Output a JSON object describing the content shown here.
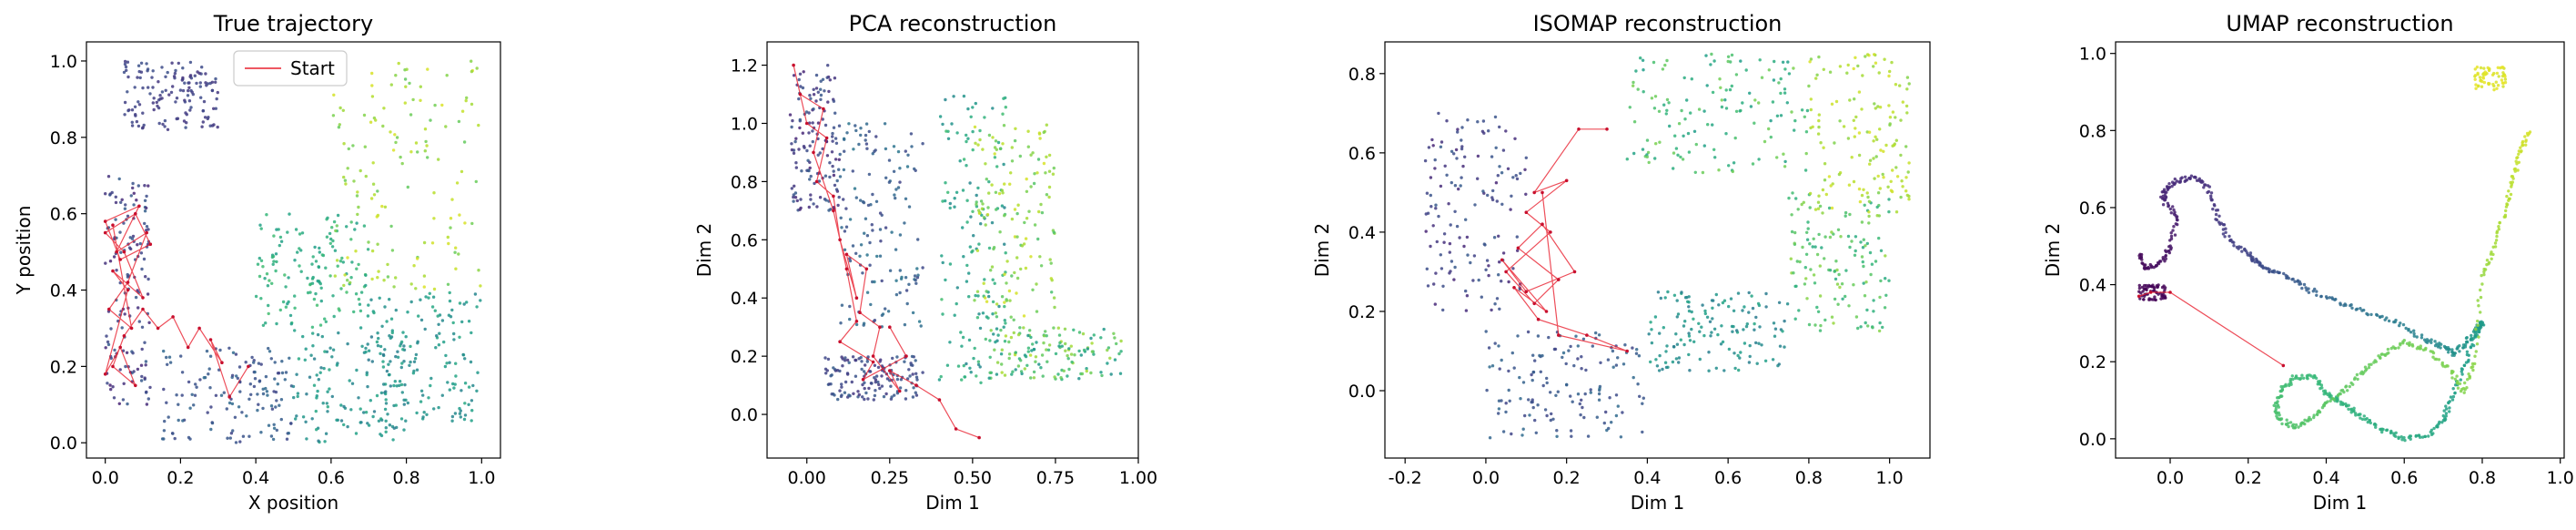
{
  "chart_data": [
    {
      "type": "scatter",
      "title": "True trajectory",
      "xlabel": "X position",
      "ylabel": "Y position",
      "xlim": [
        -0.05,
        1.05
      ],
      "ylim": [
        -0.04,
        1.05
      ],
      "xticks": [
        "0.0",
        "0.2",
        "0.4",
        "0.6",
        "0.8",
        "1.0"
      ],
      "xtick_values": [
        0.0,
        0.2,
        0.4,
        0.6,
        0.8,
        1.0
      ],
      "yticks": [
        "0.0",
        "0.2",
        "0.4",
        "0.6",
        "0.8",
        "1.0"
      ],
      "ytick_values": [
        0.0,
        0.2,
        0.4,
        0.6,
        0.8,
        1.0
      ],
      "legend": {
        "entries": [
          "Start"
        ],
        "placement": "top-center"
      },
      "points_colormap": "viridis",
      "point_clusters": [
        {
          "x": [
            0.0,
            0.12
          ],
          "y": [
            0.1,
            0.7
          ],
          "c": [
            0.1,
            0.3
          ]
        },
        {
          "x": [
            0.05,
            0.3
          ],
          "y": [
            0.82,
            1.0
          ],
          "c": [
            0.15,
            0.25
          ]
        },
        {
          "x": [
            0.15,
            0.5
          ],
          "y": [
            0.0,
            0.25
          ],
          "c": [
            0.2,
            0.35
          ]
        },
        {
          "x": [
            0.5,
            0.8
          ],
          "y": [
            0.0,
            0.3
          ],
          "c": [
            0.4,
            0.6
          ]
        },
        {
          "x": [
            0.7,
            1.0
          ],
          "y": [
            0.05,
            0.4
          ],
          "c": [
            0.45,
            0.6
          ]
        },
        {
          "x": [
            0.4,
            0.7
          ],
          "y": [
            0.3,
            0.6
          ],
          "c": [
            0.55,
            0.7
          ]
        },
        {
          "x": [
            0.6,
            1.0
          ],
          "y": [
            0.4,
            1.0
          ],
          "c": [
            0.75,
            0.95
          ]
        }
      ],
      "start_path": {
        "x": [
          0.38,
          0.33,
          0.28,
          0.31,
          0.25,
          0.22,
          0.18,
          0.14,
          0.1,
          0.05,
          0.02,
          0.08,
          0.04,
          0.0,
          0.06,
          0.02,
          0.1,
          0.05,
          0.0,
          0.08,
          0.12,
          0.04,
          0.0,
          0.09,
          0.03,
          0.11,
          0.06,
          0.01,
          0.07,
          0.02
        ],
        "y": [
          0.2,
          0.12,
          0.27,
          0.21,
          0.3,
          0.25,
          0.33,
          0.3,
          0.35,
          0.28,
          0.2,
          0.15,
          0.25,
          0.18,
          0.4,
          0.45,
          0.38,
          0.5,
          0.55,
          0.6,
          0.52,
          0.48,
          0.58,
          0.62,
          0.5,
          0.55,
          0.42,
          0.35,
          0.3,
          0.57
        ]
      }
    },
    {
      "type": "scatter",
      "title": "PCA reconstruction",
      "xlabel": "Dim 1",
      "ylabel": "Dim 2",
      "xlim": [
        -0.12,
        1.0
      ],
      "ylim": [
        -0.15,
        1.28
      ],
      "xticks": [
        "0.00",
        "0.25",
        "0.50",
        "0.75",
        "1.00"
      ],
      "xtick_values": [
        0.0,
        0.25,
        0.5,
        0.75,
        1.0
      ],
      "yticks": [
        "0.0",
        "0.2",
        "0.4",
        "0.6",
        "0.8",
        "1.0",
        "1.2"
      ],
      "ytick_values": [
        0.0,
        0.2,
        0.4,
        0.6,
        0.8,
        1.0,
        1.2
      ],
      "points_colormap": "viridis",
      "point_clusters": [
        {
          "x": [
            -0.05,
            0.1
          ],
          "y": [
            0.7,
            1.2
          ],
          "c": [
            0.1,
            0.3
          ]
        },
        {
          "x": [
            0.05,
            0.35
          ],
          "y": [
            0.05,
            0.2
          ],
          "c": [
            0.15,
            0.3
          ]
        },
        {
          "x": [
            0.1,
            0.35
          ],
          "y": [
            0.3,
            1.0
          ],
          "c": [
            0.2,
            0.4
          ]
        },
        {
          "x": [
            0.4,
            0.6
          ],
          "y": [
            0.1,
            1.1
          ],
          "c": [
            0.45,
            0.7
          ]
        },
        {
          "x": [
            0.55,
            0.95
          ],
          "y": [
            0.12,
            0.3
          ],
          "c": [
            0.5,
            0.9
          ]
        },
        {
          "x": [
            0.5,
            0.75
          ],
          "y": [
            0.3,
            1.0
          ],
          "c": [
            0.7,
            0.95
          ]
        }
      ],
      "start_path": {
        "x": [
          0.52,
          0.45,
          0.4,
          0.33,
          0.25,
          0.28,
          0.2,
          0.22,
          0.16,
          0.18,
          0.12,
          0.15,
          0.1,
          0.08,
          0.03,
          0.06,
          0.0,
          -0.04,
          -0.02,
          0.05,
          0.02,
          0.08,
          0.12,
          0.15,
          0.1,
          0.2,
          0.17,
          0.3,
          0.25
        ],
        "y": [
          -0.08,
          -0.05,
          0.05,
          0.1,
          0.15,
          0.08,
          0.2,
          0.3,
          0.35,
          0.5,
          0.55,
          0.4,
          0.6,
          0.75,
          0.8,
          0.95,
          1.0,
          1.2,
          1.1,
          1.05,
          0.9,
          0.7,
          0.5,
          0.32,
          0.25,
          0.18,
          0.12,
          0.2,
          0.3
        ]
      }
    },
    {
      "type": "scatter",
      "title": "ISOMAP reconstruction",
      "xlabel": "Dim 1",
      "ylabel": "Dim 2",
      "xlim": [
        -0.25,
        1.1
      ],
      "ylim": [
        -0.17,
        0.88
      ],
      "xticks": [
        "-0.2",
        "0.0",
        "0.2",
        "0.4",
        "0.6",
        "0.8",
        "1.0"
      ],
      "xtick_values": [
        -0.2,
        0.0,
        0.2,
        0.4,
        0.6,
        0.8,
        1.0
      ],
      "yticks": [
        "0.0",
        "0.2",
        "0.4",
        "0.6",
        "0.8"
      ],
      "ytick_values": [
        0.0,
        0.2,
        0.4,
        0.6,
        0.8
      ],
      "points_colormap": "viridis",
      "point_clusters": [
        {
          "x": [
            -0.15,
            0.1
          ],
          "y": [
            0.2,
            0.7
          ],
          "c": [
            0.1,
            0.3
          ]
        },
        {
          "x": [
            0.0,
            0.4
          ],
          "y": [
            -0.12,
            0.15
          ],
          "c": [
            0.2,
            0.35
          ]
        },
        {
          "x": [
            0.4,
            0.75
          ],
          "y": [
            0.05,
            0.25
          ],
          "c": [
            0.4,
            0.6
          ]
        },
        {
          "x": [
            0.75,
            1.0
          ],
          "y": [
            0.15,
            0.5
          ],
          "c": [
            0.6,
            0.85
          ]
        },
        {
          "x": [
            0.8,
            1.05
          ],
          "y": [
            0.45,
            0.85
          ],
          "c": [
            0.8,
            0.95
          ]
        },
        {
          "x": [
            0.35,
            0.8
          ],
          "y": [
            0.55,
            0.85
          ],
          "c": [
            0.55,
            0.8
          ]
        }
      ],
      "start_path": {
        "x": [
          0.3,
          0.23,
          0.12,
          0.2,
          0.1,
          0.16,
          0.05,
          0.12,
          0.18,
          0.08,
          0.14,
          0.22,
          0.1,
          0.04,
          0.15,
          0.07,
          0.13,
          0.25,
          0.35,
          0.18,
          0.14
        ],
        "y": [
          0.66,
          0.66,
          0.5,
          0.53,
          0.45,
          0.4,
          0.3,
          0.22,
          0.28,
          0.36,
          0.42,
          0.3,
          0.25,
          0.33,
          0.2,
          0.26,
          0.18,
          0.14,
          0.1,
          0.14,
          0.5
        ]
      }
    },
    {
      "type": "scatter",
      "title": "UMAP reconstruction",
      "xlabel": "Dim 1",
      "ylabel": "Dim 2",
      "xlim": [
        -0.14,
        1.01
      ],
      "ylim": [
        -0.05,
        1.03
      ],
      "xticks": [
        "0.0",
        "0.2",
        "0.4",
        "0.6",
        "0.8",
        "1.0"
      ],
      "xtick_values": [
        0.0,
        0.2,
        0.4,
        0.6,
        0.8,
        1.0
      ],
      "yticks": [
        "0.0",
        "0.2",
        "0.4",
        "0.6",
        "0.8",
        "1.0"
      ],
      "ytick_values": [
        0.0,
        0.2,
        0.4,
        0.6,
        0.8,
        1.0
      ],
      "points_colormap": "viridis",
      "manifold_curve": {
        "x": [
          -0.08,
          -0.06,
          -0.02,
          0.0,
          0.02,
          -0.02,
          -0.01,
          0.02,
          0.06,
          0.1,
          0.12,
          0.15,
          0.2,
          0.22,
          0.25,
          0.3,
          0.35,
          0.42,
          0.5,
          0.58,
          0.65,
          0.7,
          0.73,
          0.76,
          0.79,
          0.8,
          0.78,
          0.75,
          0.72,
          0.7,
          0.66,
          0.6,
          0.55,
          0.5,
          0.46,
          0.43,
          0.4,
          0.37,
          0.32,
          0.29,
          0.27,
          0.28,
          0.32,
          0.36,
          0.4,
          0.45,
          0.5,
          0.55,
          0.6,
          0.66,
          0.72,
          0.75,
          0.78,
          0.8,
          0.83,
          0.86,
          0.88,
          0.9,
          0.92
        ],
        "y": [
          0.48,
          0.44,
          0.46,
          0.5,
          0.58,
          0.62,
          0.65,
          0.67,
          0.68,
          0.65,
          0.58,
          0.52,
          0.48,
          0.46,
          0.44,
          0.42,
          0.39,
          0.36,
          0.33,
          0.3,
          0.26,
          0.24,
          0.22,
          0.25,
          0.29,
          0.3,
          0.26,
          0.18,
          0.1,
          0.05,
          0.01,
          0.0,
          0.02,
          0.05,
          0.08,
          0.1,
          0.12,
          0.16,
          0.16,
          0.13,
          0.09,
          0.05,
          0.03,
          0.05,
          0.09,
          0.13,
          0.18,
          0.22,
          0.25,
          0.23,
          0.18,
          0.12,
          0.2,
          0.42,
          0.5,
          0.6,
          0.68,
          0.75,
          0.8
        ],
        "c": [
          0.02,
          0.03,
          0.04,
          0.06,
          0.08,
          0.1,
          0.11,
          0.12,
          0.13,
          0.14,
          0.16,
          0.18,
          0.2,
          0.22,
          0.24,
          0.27,
          0.3,
          0.34,
          0.38,
          0.42,
          0.45,
          0.48,
          0.5,
          0.52,
          0.53,
          0.54,
          0.55,
          0.56,
          0.57,
          0.58,
          0.6,
          0.61,
          0.62,
          0.63,
          0.64,
          0.65,
          0.66,
          0.67,
          0.68,
          0.69,
          0.7,
          0.71,
          0.72,
          0.73,
          0.74,
          0.75,
          0.76,
          0.77,
          0.78,
          0.79,
          0.8,
          0.81,
          0.82,
          0.84,
          0.86,
          0.88,
          0.9,
          0.92,
          0.94
        ]
      },
      "extra_clusters": [
        {
          "x": [
            0.78,
            0.86
          ],
          "y": [
            0.9,
            0.97
          ],
          "c": [
            0.93,
            0.97
          ]
        },
        {
          "x": [
            -0.08,
            -0.01
          ],
          "y": [
            0.36,
            0.4
          ],
          "c": [
            0.0,
            0.02
          ]
        }
      ],
      "start_path": {
        "x": [
          0.29,
          0.0,
          -0.05,
          -0.08
        ],
        "y": [
          0.19,
          0.38,
          0.38,
          0.37
        ]
      }
    }
  ]
}
